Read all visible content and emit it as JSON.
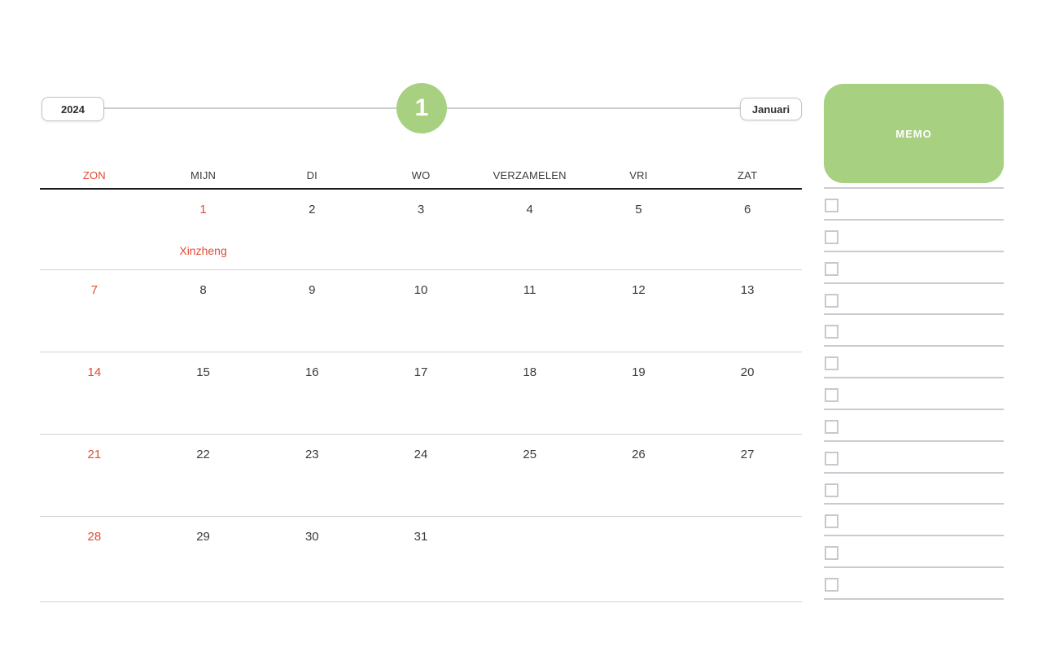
{
  "topbar": {
    "year_button": "2024",
    "month_badge": "1",
    "month_button": "Januari"
  },
  "colors": {
    "accent_green": "#a8d081",
    "holiday_red": "#e14b33",
    "text_dark": "#323236",
    "grid_line": "#d2d2d2",
    "header_line": "#1d1d1f",
    "memo_line": "#cbcad0"
  },
  "calendar": {
    "weekday_headers": [
      {
        "label": "ZON",
        "highlight": true
      },
      {
        "label": "MIJN",
        "highlight": false
      },
      {
        "label": "DI",
        "highlight": false
      },
      {
        "label": "WO",
        "highlight": false
      },
      {
        "label": "VERZAMELEN",
        "highlight": false
      },
      {
        "label": "VRI",
        "highlight": false
      },
      {
        "label": "ZAT",
        "highlight": false
      }
    ],
    "weeks": [
      [
        {
          "day": "",
          "hl": false
        },
        {
          "day": "1",
          "hl": true,
          "note": "Xinzheng"
        },
        {
          "day": "2",
          "hl": false
        },
        {
          "day": "3",
          "hl": false
        },
        {
          "day": "4",
          "hl": false
        },
        {
          "day": "5",
          "hl": false
        },
        {
          "day": "6",
          "hl": false
        }
      ],
      [
        {
          "day": "7",
          "hl": true
        },
        {
          "day": "8",
          "hl": false
        },
        {
          "day": "9",
          "hl": false
        },
        {
          "day": "10",
          "hl": false
        },
        {
          "day": "11",
          "hl": false
        },
        {
          "day": "12",
          "hl": false
        },
        {
          "day": "13",
          "hl": false
        }
      ],
      [
        {
          "day": "14",
          "hl": true
        },
        {
          "day": "15",
          "hl": false
        },
        {
          "day": "16",
          "hl": false
        },
        {
          "day": "17",
          "hl": false
        },
        {
          "day": "18",
          "hl": false
        },
        {
          "day": "19",
          "hl": false
        },
        {
          "day": "20",
          "hl": false
        }
      ],
      [
        {
          "day": "21",
          "hl": true
        },
        {
          "day": "22",
          "hl": false
        },
        {
          "day": "23",
          "hl": false
        },
        {
          "day": "24",
          "hl": false
        },
        {
          "day": "25",
          "hl": false
        },
        {
          "day": "26",
          "hl": false
        },
        {
          "day": "27",
          "hl": false
        }
      ],
      [
        {
          "day": "28",
          "hl": true
        },
        {
          "day": "29",
          "hl": false
        },
        {
          "day": "30",
          "hl": false
        },
        {
          "day": "31",
          "hl": false
        },
        {
          "day": "",
          "hl": false
        },
        {
          "day": "",
          "hl": false
        },
        {
          "day": "",
          "hl": false
        }
      ]
    ]
  },
  "memo": {
    "title": "MEMO",
    "row_count": 13
  }
}
